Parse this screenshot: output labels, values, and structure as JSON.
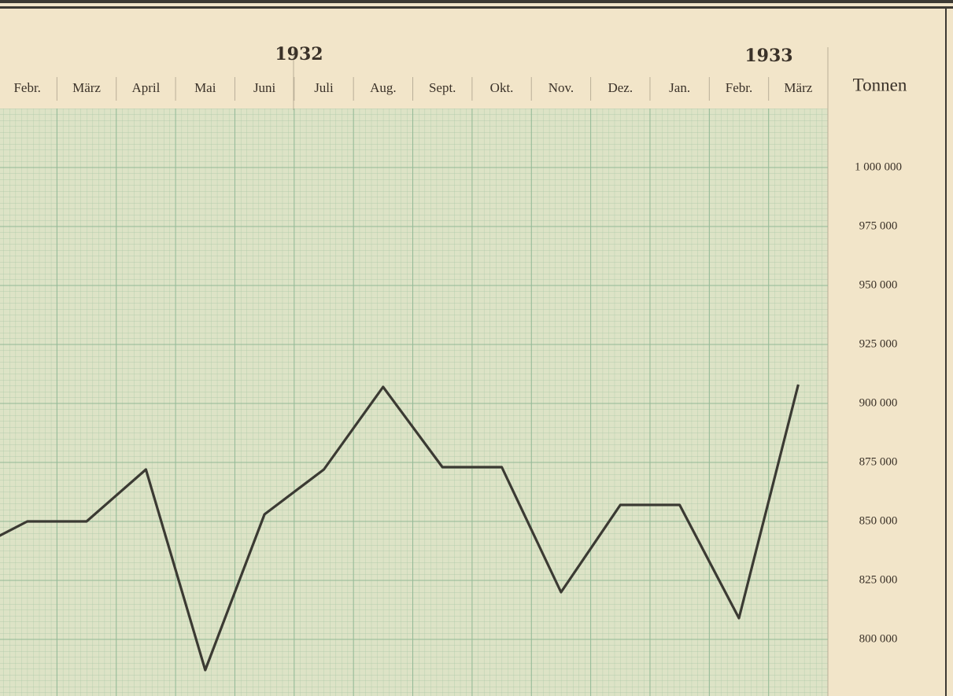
{
  "chart_data": {
    "type": "line",
    "years": [
      "1932",
      "1933"
    ],
    "y_label": "Tonnen",
    "categories": [
      null,
      "Febr.",
      "März",
      "April",
      "Mai",
      "Juni",
      "Juli",
      "Aug.",
      "Sept.",
      "Okt.",
      "Nov.",
      "Dez.",
      "Jan.",
      "Febr.",
      "März"
    ],
    "series": [
      {
        "name": "Tonnen",
        "color": "#3b3a33",
        "values": [
          837000,
          850000,
          850000,
          872000,
          787000,
          853000,
          872000,
          907000,
          873000,
          873000,
          820000,
          857000,
          857000,
          809000,
          908000
        ]
      }
    ],
    "ylim": [
      775000,
      1025000
    ],
    "yticks": [
      {
        "value": 800000,
        "label": "800 000"
      },
      {
        "value": 825000,
        "label": "825 000"
      },
      {
        "value": 850000,
        "label": "850 000"
      },
      {
        "value": 875000,
        "label": "875 000"
      },
      {
        "value": 900000,
        "label": "900 000"
      },
      {
        "value": 925000,
        "label": "925 000"
      },
      {
        "value": 950000,
        "label": "950 000"
      },
      {
        "value": 975000,
        "label": "975 000"
      },
      {
        "value": 1000000,
        "label": "1 000 000"
      }
    ],
    "grid": true
  }
}
